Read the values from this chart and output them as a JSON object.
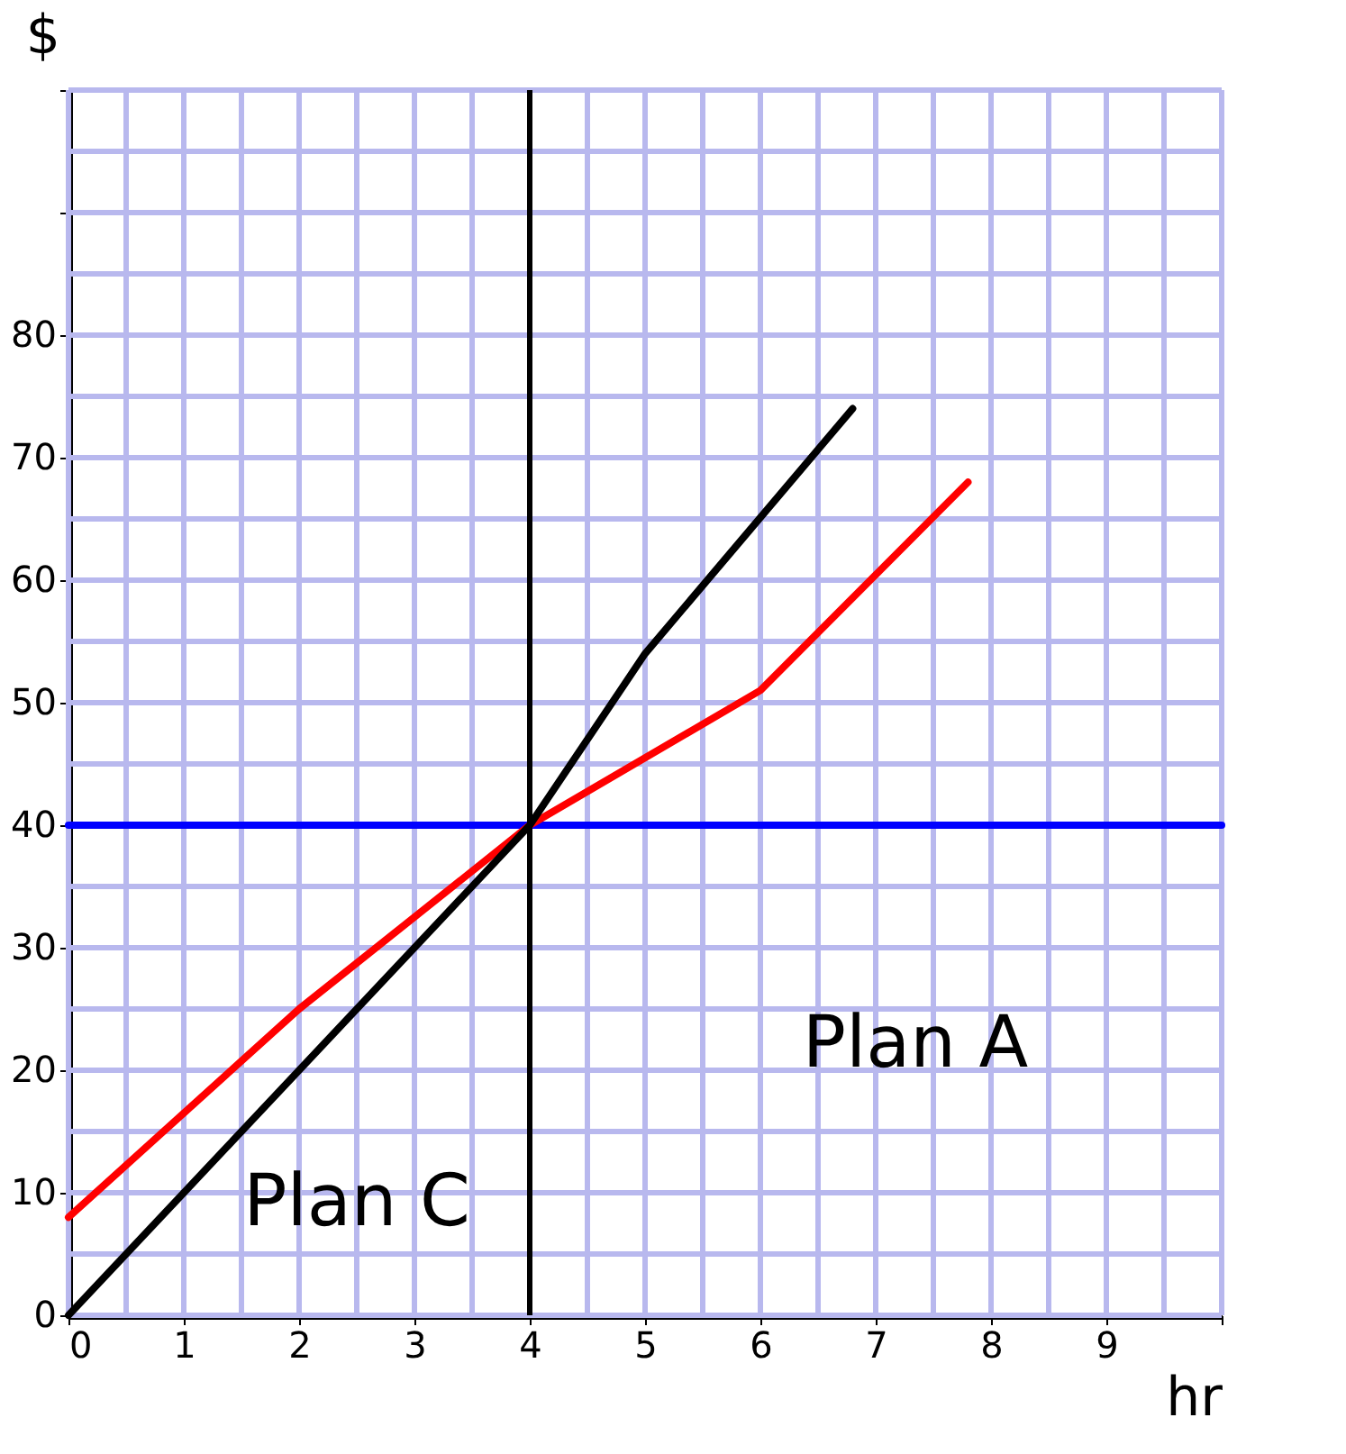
{
  "chart_data": {
    "type": "line",
    "xlabel": "hr",
    "ylabel": "$",
    "xlim": [
      0,
      10
    ],
    "ylim": [
      0,
      100
    ],
    "xticks": [
      0,
      {
        "value": 0.5,
        "label": null
      },
      1,
      {
        "value": 1.5,
        "label": null
      },
      2,
      {
        "value": 2.5,
        "label": null
      },
      3,
      {
        "value": 3.5,
        "label": null
      },
      4,
      {
        "value": 4.5,
        "label": null
      },
      5,
      {
        "value": 5.5,
        "label": null
      },
      6,
      {
        "value": 6.5,
        "label": null
      },
      7,
      {
        "value": 7.5,
        "label": null
      },
      8,
      {
        "value": 8.5,
        "label": null
      },
      9,
      {
        "value": 9.5,
        "label": null
      },
      {
        "value": 10,
        "label": null
      }
    ],
    "yticks": [
      0,
      {
        "value": 5,
        "label": null
      },
      10,
      {
        "value": 15,
        "label": null
      },
      20,
      {
        "value": 25,
        "label": null
      },
      30,
      {
        "value": 35,
        "label": null
      },
      40,
      {
        "value": 45,
        "label": null
      },
      50,
      {
        "value": 55,
        "label": null
      },
      60,
      {
        "value": 65,
        "label": null
      },
      70,
      {
        "value": 75,
        "label": null
      },
      80,
      {
        "value": 85,
        "label": null
      },
      {
        "value": 90,
        "label": null
      },
      {
        "value": 95,
        "label": null
      },
      {
        "value": 100,
        "label": null
      }
    ],
    "grid": true,
    "series": [
      {
        "color": "#0000ff",
        "x": [
          0,
          10
        ],
        "values": [
          40,
          40
        ]
      },
      {
        "color": "#ff0000",
        "x": [
          0,
          2,
          4,
          6,
          7.8
        ],
        "values": [
          8,
          25,
          40,
          51,
          68
        ]
      },
      {
        "color": "#000000",
        "x": [
          0,
          1,
          2,
          3,
          4,
          5,
          6.8
        ],
        "values": [
          0,
          10,
          20,
          30,
          40,
          54,
          74
        ]
      }
    ],
    "ref_lines": [
      {
        "axis": "x",
        "value": 4,
        "color": "#000000"
      }
    ],
    "annotations": [
      "Plan A",
      "Plan C"
    ]
  }
}
